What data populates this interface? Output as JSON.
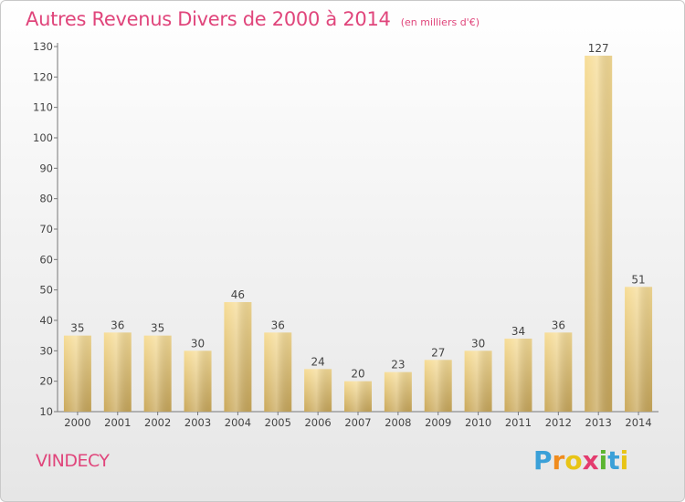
{
  "header": {
    "title": "Autres Revenus Divers de 2000 à 2014",
    "subtitle": "(en milliers d'€)"
  },
  "footer": {
    "commune": "VINDECY",
    "logo_letters": [
      "P",
      "r",
      "o",
      "x",
      "i",
      "t",
      "i"
    ],
    "logo_colors": [
      "#3aa0d8",
      "#f08c1e",
      "#e8c416",
      "#e33b6e",
      "#5cb531",
      "#3aa0d8",
      "#e8c416"
    ]
  },
  "chart_data": {
    "type": "bar",
    "categories": [
      "2000",
      "2001",
      "2002",
      "2003",
      "2004",
      "2005",
      "2006",
      "2007",
      "2008",
      "2009",
      "2010",
      "2011",
      "2012",
      "2013",
      "2014"
    ],
    "values": [
      35,
      36,
      35,
      30,
      46,
      36,
      24,
      20,
      23,
      27,
      30,
      34,
      36,
      127,
      51
    ],
    "title": "Autres Revenus Divers de 2000 à 2014",
    "subtitle": "(en milliers d'€)",
    "xlabel": "",
    "ylabel": "",
    "ylim": [
      10,
      130
    ],
    "yticks": [
      10,
      20,
      30,
      40,
      50,
      60,
      70,
      80,
      90,
      100,
      110,
      120,
      130
    ],
    "grid": false,
    "data_labels": true,
    "bar_color": "#e6c778",
    "text_color": "#e0457b"
  }
}
